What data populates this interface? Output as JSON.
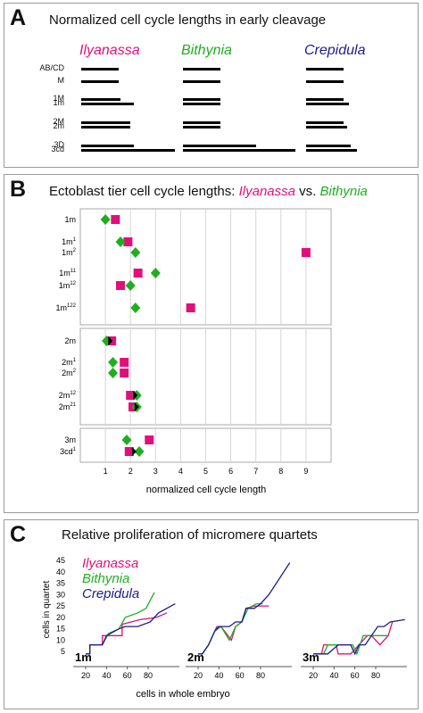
{
  "panelA": {
    "letter": "A",
    "title": "Normalized cell cycle lengths in early cleavage",
    "species": [
      "Ilyanassa",
      "Bithynia",
      "Crepidula"
    ],
    "row_labels": [
      "AB/CD",
      "M",
      "1M",
      "1m",
      "2M",
      "2m",
      "3D",
      "3cd"
    ]
  },
  "panelB": {
    "letter": "B",
    "title_prefix": "Ectoblast tier cell cycle lengths:",
    "title_species1": "Ilyanassa",
    "title_vs": "vs.",
    "title_species2": "Bithynia",
    "xlabel": "normalized cell cycle length"
  },
  "panelC": {
    "letter": "C",
    "title": "Relative proliferation of micromere quartets",
    "ylabel": "cells in quartet",
    "xlabel": "cells in whole embryo",
    "legend": [
      "Ilyanassa",
      "Bithynia",
      "Crepidula"
    ],
    "subplot_labels": [
      "1m",
      "2m",
      "3m"
    ]
  },
  "colors": {
    "ilyanassa": "#e0107a",
    "bithynia": "#1fae1f",
    "crepidula": "#1b1d8a"
  },
  "chart_data": [
    {
      "type": "bar",
      "panel": "A",
      "species": [
        "Ilyanassa",
        "Bithynia",
        "Crepidula"
      ],
      "rows": [
        {
          "cell": "AB/CD",
          "values": [
            1.0,
            1.0,
            1.0
          ]
        },
        {
          "cell": "M",
          "values": [
            1.0,
            1.0,
            1.0
          ]
        },
        {
          "cell": "1M",
          "values": [
            1.05,
            1.0,
            1.0
          ]
        },
        {
          "cell": "1m",
          "values": [
            1.4,
            1.0,
            1.15
          ]
        },
        {
          "cell": "2M",
          "values": [
            1.3,
            1.0,
            1.0
          ]
        },
        {
          "cell": "2m",
          "values": [
            1.3,
            1.0,
            1.1
          ]
        },
        {
          "cell": "3D",
          "values": [
            1.4,
            1.95,
            1.2
          ]
        },
        {
          "cell": "3cd",
          "values": [
            2.5,
            3.0,
            1.35
          ]
        }
      ]
    },
    {
      "type": "scatter",
      "panel": "B",
      "xlabel": "normalized cell cycle length",
      "xlim": [
        0,
        10
      ],
      "xticks": [
        1,
        2,
        3,
        4,
        5,
        6,
        7,
        8,
        9
      ],
      "groups": [
        {
          "cells": [
            {
              "label": "1m",
              "sup": "",
              "ilyanassa": 1.4,
              "bithynia": 1.0
            },
            {
              "label": "1m",
              "sup": "1",
              "ilyanassa": 1.9,
              "bithynia": 1.6
            },
            {
              "label": "1m",
              "sup": "2",
              "ilyanassa": 9.0,
              "bithynia": 2.2
            },
            {
              "label": "1m",
              "sup": "11",
              "ilyanassa": 2.3,
              "bithynia": 3.0
            },
            {
              "label": "1m",
              "sup": "12",
              "ilyanassa": 1.6,
              "bithynia": 2.0
            },
            {
              "label": "1m",
              "sup": "122",
              "ilyanassa": 4.4,
              "bithynia": 2.2
            }
          ]
        },
        {
          "cells": [
            {
              "label": "2m",
              "sup": "",
              "ilyanassa": 1.25,
              "bithynia": 1.05,
              "marker": 1.15
            },
            {
              "label": "2m",
              "sup": "1",
              "ilyanassa": 1.75,
              "bithynia": 1.3
            },
            {
              "label": "2m",
              "sup": "2",
              "ilyanassa": 1.75,
              "bithynia": 1.3
            },
            {
              "label": "2m",
              "sup": "12",
              "ilyanassa": 2.0,
              "bithynia": 2.25,
              "marker": 2.15
            },
            {
              "label": "2m",
              "sup": "21",
              "ilyanassa": 2.1,
              "bithynia": 2.25,
              "marker": 2.2
            }
          ]
        },
        {
          "cells": [
            {
              "label": "3m",
              "sup": "",
              "ilyanassa": 2.75,
              "bithynia": 1.85
            },
            {
              "label": "3cd",
              "sup": "1",
              "ilyanassa": 1.95,
              "bithynia": 2.35,
              "marker": 2.1
            }
          ]
        }
      ]
    },
    {
      "type": "line",
      "panel": "C",
      "ylim": [
        0,
        45
      ],
      "yticks": [
        5,
        10,
        15,
        20,
        25,
        30,
        35,
        40,
        45
      ],
      "xticks": [
        20,
        40,
        60,
        80
      ],
      "subplots": [
        {
          "label": "1m",
          "xlim": [
            8,
            110
          ],
          "series": [
            {
              "name": "Ilyanassa",
              "x": [
                20,
                24,
                24,
                36,
                36,
                55,
                55,
                72,
                88,
                98
              ],
              "y": [
                4,
                4,
                8,
                8,
                12,
                12,
                17,
                19,
                20,
                22
              ]
            },
            {
              "name": "Bithynia",
              "x": [
                20,
                24,
                24,
                36,
                42,
                52,
                58,
                70,
                78,
                86
              ],
              "y": [
                4,
                4,
                8,
                8,
                13,
                15,
                20,
                22,
                24,
                31
              ]
            },
            {
              "name": "Crepidula",
              "x": [
                20,
                24,
                24,
                36,
                40,
                52,
                58,
                70,
                82,
                90,
                106
              ],
              "y": [
                4,
                4,
                8,
                8,
                12,
                15,
                16,
                16,
                18,
                22,
                26
              ]
            }
          ]
        },
        {
          "label": "2m",
          "xlim": [
            8,
            110
          ],
          "series": [
            {
              "name": "Ilyanassa",
              "x": [
                20,
                24,
                30,
                38,
                42,
                52,
                56,
                62,
                66,
                74,
                80,
                88
              ],
              "y": [
                4,
                4,
                8,
                16,
                16,
                10,
                16,
                18,
                24,
                25,
                25,
                25
              ]
            },
            {
              "name": "Bithynia",
              "x": [
                20,
                24,
                30,
                36,
                42,
                50,
                56,
                62,
                68,
                76,
                82
              ],
              "y": [
                4,
                4,
                8,
                14,
                16,
                10,
                16,
                18,
                24,
                26,
                26
              ]
            },
            {
              "name": "Crepidula",
              "x": [
                20,
                24,
                30,
                36,
                40,
                50,
                56,
                62,
                66,
                74,
                80,
                88,
                108
              ],
              "y": [
                4,
                4,
                8,
                14,
                16,
                16,
                18,
                18,
                24,
                24,
                26,
                30,
                44
              ]
            }
          ]
        },
        {
          "label": "3m",
          "xlim": [
            8,
            110
          ],
          "series": [
            {
              "name": "Ilyanassa",
              "x": [
                20,
                28,
                30,
                42,
                44,
                56,
                64,
                72,
                76,
                84,
                92,
                96
              ],
              "y": [
                4,
                4,
                8,
                8,
                4,
                4,
                8,
                12,
                12,
                8,
                12,
                18
              ]
            },
            {
              "name": "Bithynia",
              "x": [
                20,
                30,
                34,
                44,
                52,
                58,
                62,
                68,
                74,
                80,
                88,
                92
              ],
              "y": [
                4,
                4,
                8,
                8,
                8,
                8,
                4,
                12,
                12,
                12,
                12,
                12
              ]
            },
            {
              "name": "Crepidula",
              "x": [
                20,
                30,
                34,
                44,
                56,
                60,
                64,
                70,
                76,
                82,
                88,
                94,
                108
              ],
              "y": [
                4,
                4,
                4,
                8,
                8,
                4,
                8,
                8,
                12,
                16,
                16,
                18,
                19
              ]
            }
          ]
        }
      ]
    }
  ]
}
